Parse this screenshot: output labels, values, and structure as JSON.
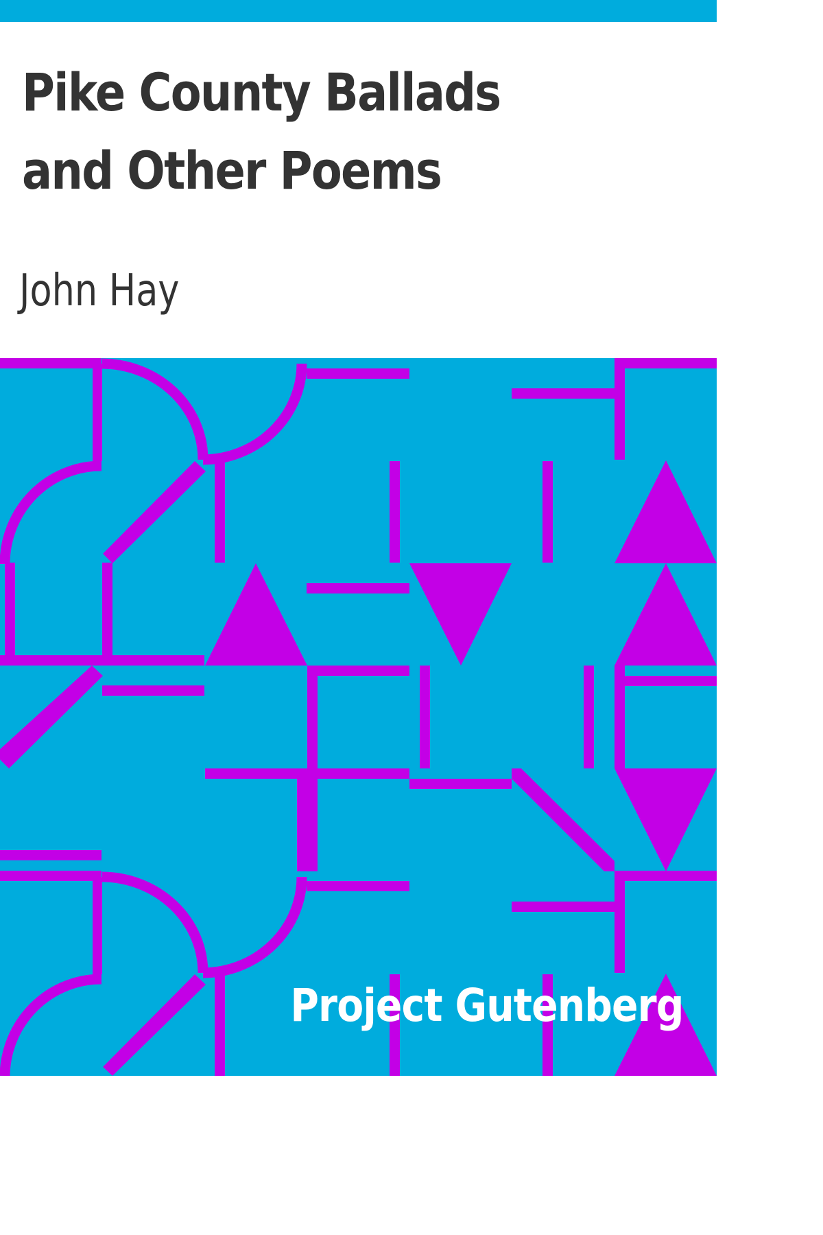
{
  "cover": {
    "title": "Pike County Ballads and Other Poems",
    "author": "John Hay",
    "publisher": "Project Gutenberg"
  },
  "colors": {
    "background": "#00acdd",
    "accent": "#c300e6",
    "title_text": "#333333",
    "publisher_text": "#ffffff",
    "title_area": "#ffffff"
  }
}
